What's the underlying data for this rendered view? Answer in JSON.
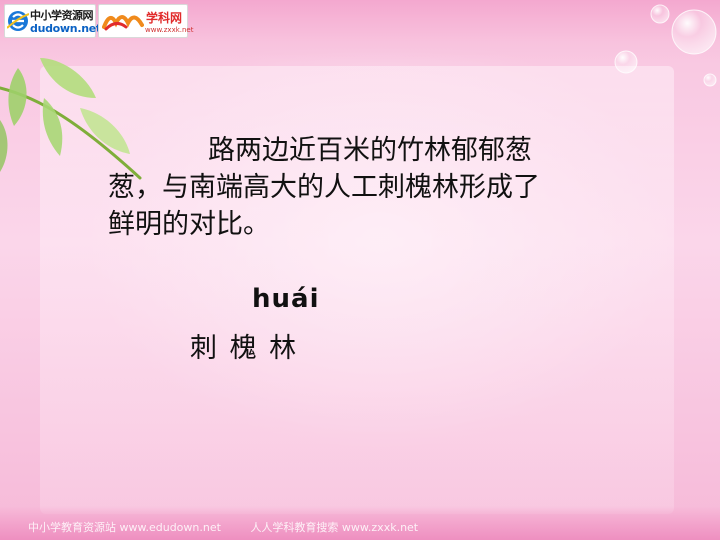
{
  "logos": {
    "left": {
      "top": "中小学资源网",
      "bottom": "dudown.net"
    },
    "right": {
      "top": "学科网",
      "bottom": "www.zxxk.net"
    }
  },
  "content": {
    "line1": "路两边近百米的竹林郁郁葱",
    "line2": "葱，与南端高大的人工刺槐林形成了",
    "line3": "鲜明的对比。",
    "pinyin": "huái",
    "word": "刺 槐 林"
  },
  "footer": {
    "left": "中小学教育资源站 www.edudown.net",
    "right": "人人学科教育搜索 www.zxxk.net"
  },
  "colors": {
    "background": "#fbd0e6",
    "text": "#111111",
    "accent": "#e12b2b"
  }
}
